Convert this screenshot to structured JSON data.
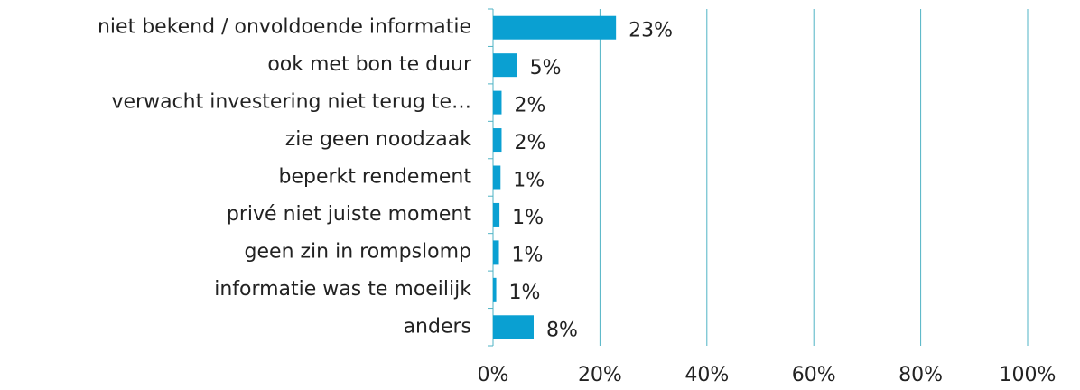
{
  "chart_data": {
    "type": "bar",
    "orientation": "horizontal",
    "categories": [
      "niet bekend / onvoldoende informatie",
      "ook met bon te duur",
      "verwacht investering niet terug te…",
      "zie geen noodzaak",
      "beperkt rendement",
      "privé niet juiste moment",
      "geen zin in rompslomp",
      "informatie was te moeilijk",
      "anders"
    ],
    "values": [
      23,
      4.5,
      1.6,
      1.6,
      1.4,
      1.2,
      1.1,
      0.6,
      7.6
    ],
    "value_labels": [
      "23%",
      "5%",
      "2%",
      "2%",
      "1%",
      "1%",
      "1%",
      "1%",
      "8%"
    ],
    "color": "#0aa0d2",
    "xlim": [
      0,
      100
    ],
    "xticks": [
      {
        "value": 0,
        "label": "0%"
      },
      {
        "value": 20,
        "label": "20%"
      },
      {
        "value": 40,
        "label": "40%"
      },
      {
        "value": 60,
        "label": "60%"
      },
      {
        "value": 80,
        "label": "80%"
      },
      {
        "value": 100,
        "label": "100%"
      }
    ],
    "grid": true
  }
}
